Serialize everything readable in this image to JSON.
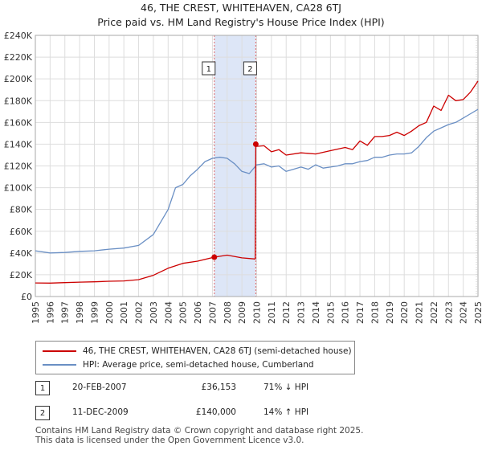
{
  "title_line1": "46, THE CREST, WHITEHAVEN, CA28 6TJ",
  "title_line2": "Price paid vs. HM Land Registry's House Price Index (HPI)",
  "colors": {
    "property": "#cc0000",
    "hpi": "#6a8fc4",
    "shade": "#dde6f7",
    "vline": "#dd6666"
  },
  "chart_data": {
    "type": "line",
    "title": "46, THE CREST, WHITEHAVEN, CA28 6TJ — Price paid vs. HM Land Registry's House Price Index (HPI)",
    "xlim": [
      1995,
      2025
    ],
    "ylim": [
      0,
      240000
    ],
    "x_ticks": [
      1995,
      1996,
      1997,
      1998,
      1999,
      2000,
      2001,
      2002,
      2003,
      2004,
      2005,
      2006,
      2007,
      2008,
      2009,
      2010,
      2011,
      2012,
      2013,
      2014,
      2015,
      2016,
      2017,
      2018,
      2019,
      2020,
      2021,
      2022,
      2023,
      2024,
      2025
    ],
    "y_ticks": [
      0,
      20000,
      40000,
      60000,
      80000,
      100000,
      120000,
      140000,
      160000,
      180000,
      200000,
      220000,
      240000
    ],
    "y_tick_labels": [
      "£0",
      "£20K",
      "£40K",
      "£60K",
      "£80K",
      "£100K",
      "£120K",
      "£140K",
      "£160K",
      "£180K",
      "£200K",
      "£220K",
      "£240K"
    ],
    "shaded_range": [
      2007.13,
      2009.94
    ],
    "events": [
      {
        "label": "1",
        "x": 2007.13
      },
      {
        "label": "2",
        "x": 2009.94
      }
    ],
    "series": [
      {
        "name": "46, THE CREST, WHITEHAVEN, CA28 6TJ (semi-detached house)",
        "x": [
          1995,
          1996,
          1997,
          1998,
          1999,
          2000,
          2001,
          2002,
          2003,
          2004,
          2005,
          2006,
          2007.13,
          2008,
          2009,
          2009.9,
          2009.94,
          2010,
          2010.5,
          2011,
          2011.5,
          2012,
          2013,
          2014,
          2015,
          2016,
          2016.5,
          2017,
          2017.5,
          2018,
          2018.5,
          2019,
          2019.5,
          2020,
          2020.5,
          2021,
          2021.5,
          2022,
          2022.5,
          2023,
          2023.5,
          2024,
          2024.5,
          2025
        ],
        "y": [
          12500,
          12300,
          12800,
          13200,
          13500,
          14000,
          14300,
          15500,
          19500,
          26000,
          30500,
          32500,
          36153,
          38000,
          35500,
          34500,
          140000,
          138000,
          138500,
          133000,
          135000,
          130000,
          132000,
          131000,
          134000,
          137000,
          135000,
          143000,
          139000,
          147000,
          147000,
          148000,
          151000,
          148000,
          152000,
          157000,
          160000,
          175000,
          171000,
          185000,
          180000,
          181000,
          188000,
          198000
        ]
      },
      {
        "name": "HPI: Average price, semi-detached house, Cumberland",
        "x": [
          1995,
          1996,
          1997,
          1998,
          1999,
          2000,
          2001,
          2002,
          2003,
          2004,
          2004.5,
          2005,
          2005.5,
          2006,
          2006.5,
          2007,
          2007.5,
          2008,
          2008.5,
          2009,
          2009.5,
          2010,
          2010.5,
          2011,
          2011.5,
          2012,
          2012.5,
          2013,
          2013.5,
          2014,
          2014.5,
          2015,
          2015.5,
          2016,
          2016.5,
          2017,
          2017.5,
          2018,
          2018.5,
          2019,
          2019.5,
          2020,
          2020.5,
          2021,
          2021.5,
          2022,
          2022.5,
          2023,
          2023.5,
          2024,
          2024.5,
          2025
        ],
        "y": [
          42000,
          40000,
          40500,
          41500,
          42000,
          43500,
          44500,
          47000,
          57000,
          80000,
          100000,
          103000,
          111000,
          117000,
          124000,
          127000,
          128000,
          127000,
          122000,
          115000,
          113000,
          121000,
          122000,
          119000,
          120000,
          115000,
          117000,
          119000,
          117000,
          121000,
          118000,
          119000,
          120000,
          122000,
          122000,
          124000,
          125000,
          128000,
          128000,
          130000,
          131000,
          131000,
          132000,
          138000,
          146000,
          152000,
          155000,
          158000,
          160000,
          164000,
          168000,
          172000
        ]
      }
    ]
  },
  "legend": {
    "property_label": "46, THE CREST, WHITEHAVEN, CA28 6TJ (semi-detached house)",
    "hpi_label": "HPI: Average price, semi-detached house, Cumberland"
  },
  "transactions": [
    {
      "num": "1",
      "date": "20-FEB-2007",
      "price": "£36,153",
      "hpi": "71% ↓ HPI"
    },
    {
      "num": "2",
      "date": "11-DEC-2009",
      "price": "£140,000",
      "hpi": "14% ↑ HPI"
    }
  ],
  "footer_line1": "Contains HM Land Registry data © Crown copyright and database right 2025.",
  "footer_line2": "This data is licensed under the Open Government Licence v3.0."
}
